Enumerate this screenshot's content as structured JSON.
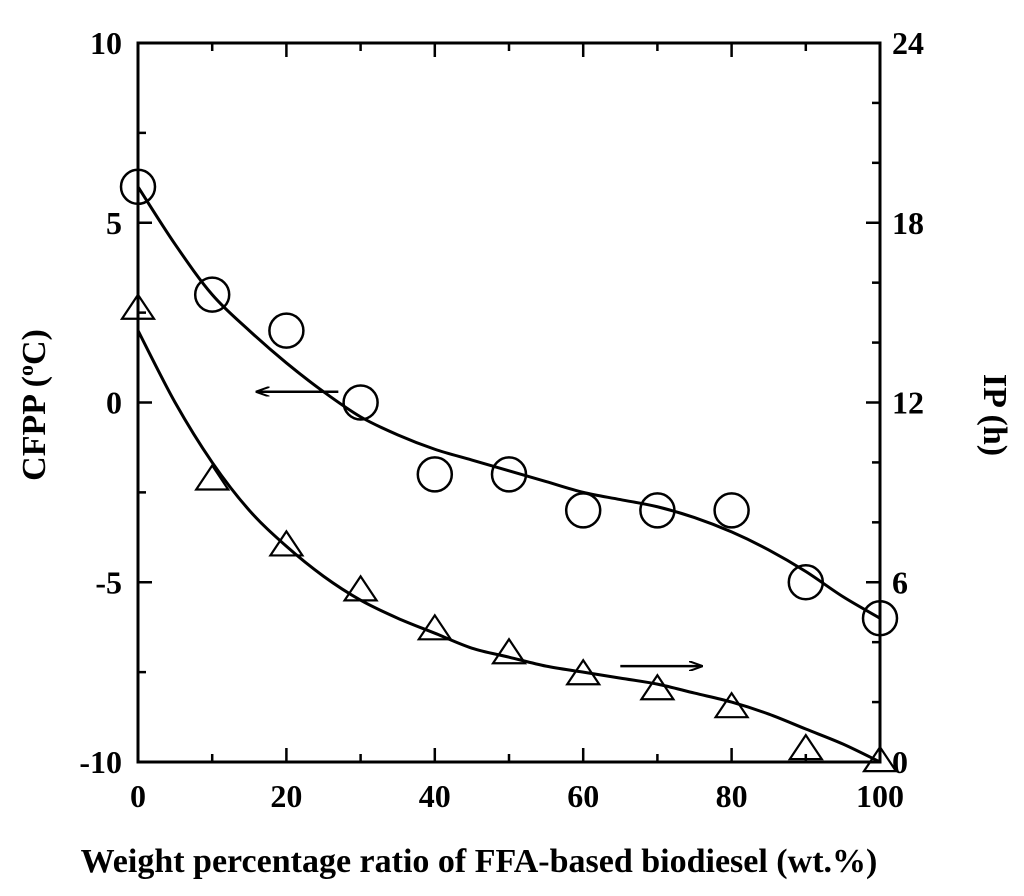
{
  "chart_data": {
    "type": "scatter",
    "title": "",
    "xlabel": "Weight percentage ratio of FFA-based biodiesel (wt.%)",
    "ylabel_left": "CFPP (",
    "ylabel_left_sup": "o",
    "ylabel_left_unit": "C)",
    "ylabel_right": "IP (h)",
    "xlim": [
      0,
      100
    ],
    "ylim_left": [
      -10,
      10
    ],
    "ylim_right": [
      0,
      24
    ],
    "x_ticks": [
      "0",
      "20",
      "40",
      "60",
      "80",
      "100"
    ],
    "y_left_ticks": [
      "10",
      "5",
      "0",
      "-5",
      "-10"
    ],
    "y_right_ticks": [
      "24",
      "18",
      "12",
      "6",
      "0"
    ],
    "grid": false,
    "series": [
      {
        "axis": "left",
        "marker": "circle",
        "x": [
          0,
          10,
          20,
          30,
          40,
          50,
          60,
          70,
          80,
          90,
          100
        ],
        "y": [
          6,
          3,
          2,
          0,
          -2,
          -2,
          -3,
          -3,
          -3,
          -5,
          -6
        ],
        "fit_x": [
          0,
          5,
          10,
          15,
          20,
          25,
          30,
          35,
          40,
          45,
          50,
          55,
          60,
          65,
          70,
          75,
          80,
          85,
          90,
          95,
          100
        ],
        "fit_y": [
          6.0,
          4.4,
          3.0,
          2.0,
          1.1,
          0.3,
          -0.4,
          -0.9,
          -1.3,
          -1.6,
          -1.9,
          -2.2,
          -2.5,
          -2.7,
          -2.9,
          -3.2,
          -3.6,
          -4.1,
          -4.7,
          -5.4,
          -6.0
        ]
      },
      {
        "axis": "right",
        "marker": "triangle",
        "x": [
          0,
          10,
          20,
          30,
          40,
          50,
          60,
          70,
          80,
          90,
          100
        ],
        "y": [
          15.1,
          9.4,
          7.2,
          5.7,
          4.4,
          3.6,
          2.9,
          2.4,
          1.8,
          0.4,
          0
        ],
        "fit_x": [
          0,
          5,
          10,
          15,
          20,
          25,
          30,
          35,
          40,
          45,
          50,
          55,
          60,
          65,
          70,
          75,
          80,
          85,
          90,
          95,
          100
        ],
        "fit_y": [
          14.4,
          12.0,
          10.0,
          8.4,
          7.2,
          6.2,
          5.4,
          4.8,
          4.3,
          3.8,
          3.5,
          3.2,
          3.0,
          2.8,
          2.6,
          2.3,
          2.0,
          1.6,
          1.1,
          0.6,
          0.0
        ]
      }
    ],
    "annotations": [
      {
        "type": "arrow",
        "direction": "left",
        "points_to": "left-axis",
        "from": [
          27,
          0.3
        ],
        "to": [
          16,
          0.3
        ]
      },
      {
        "type": "arrow",
        "direction": "right",
        "points_to": "right-axis",
        "from": [
          65,
          3.2
        ],
        "to": [
          76,
          3.2
        ]
      }
    ]
  }
}
